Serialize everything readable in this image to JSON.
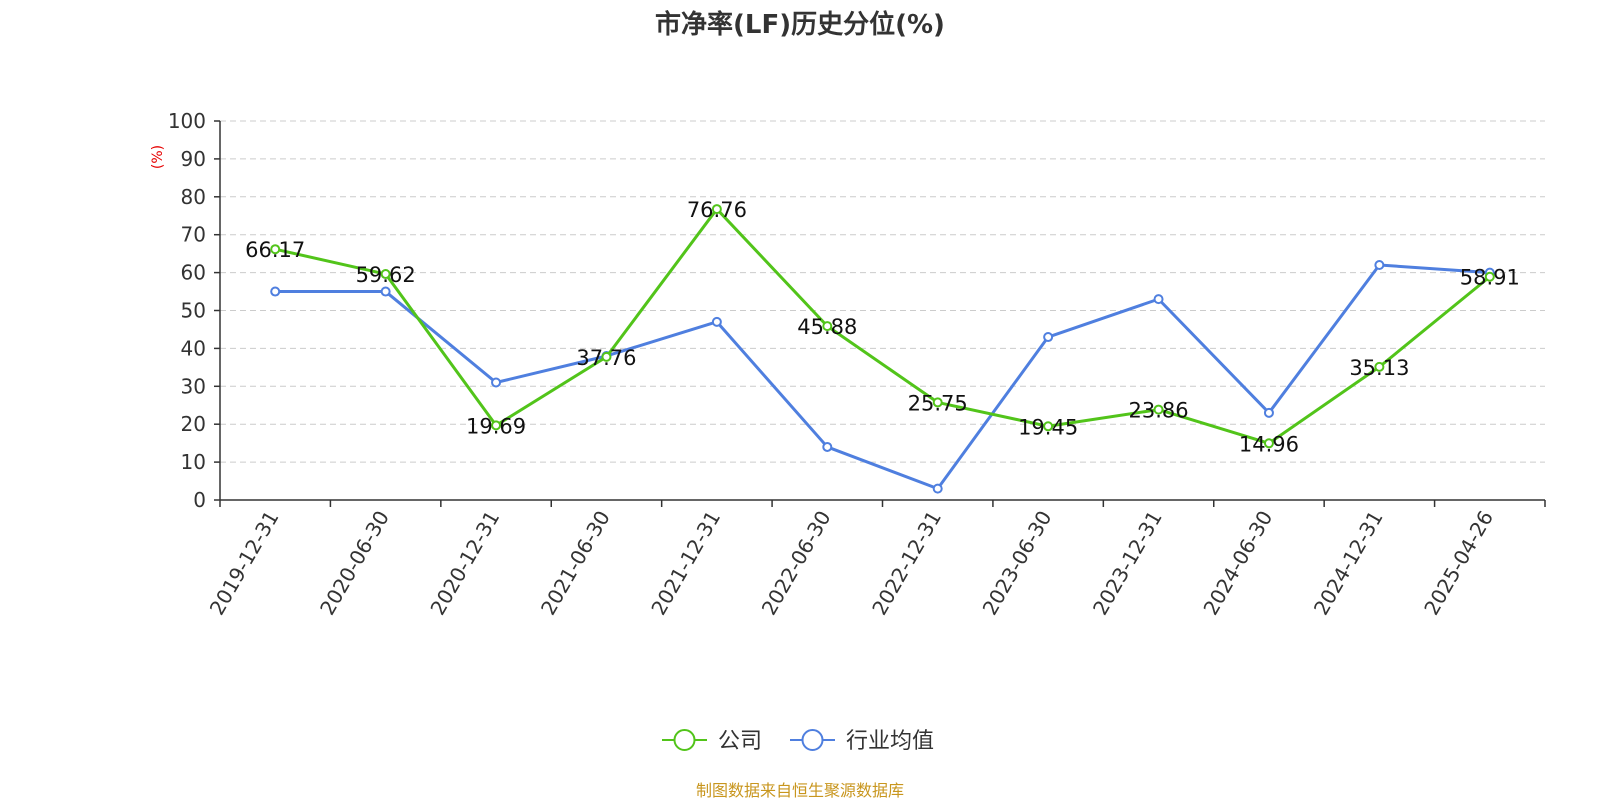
{
  "colors": {
    "company": "#52c41a",
    "industry": "#4f7fdf",
    "axis": "#333333",
    "grid": "#cccccc",
    "ylabel": "#e60000",
    "source": "#c8961e"
  },
  "chart_data": {
    "type": "line",
    "title": "市净率(LF)历史分位(%)",
    "ylabel": "(%)",
    "ylim": [
      0,
      100
    ],
    "yticks": [
      "0",
      "10",
      "20",
      "30",
      "40",
      "50",
      "60",
      "70",
      "80",
      "90",
      "100"
    ],
    "grid": true,
    "legend_position": "bottom-center",
    "categories": [
      "2019-12-31",
      "2020-06-30",
      "2020-12-31",
      "2021-06-30",
      "2021-12-31",
      "2022-06-30",
      "2022-12-31",
      "2023-06-30",
      "2023-12-31",
      "2024-06-30",
      "2024-12-31",
      "2025-04-26"
    ],
    "series": [
      {
        "name": "公司",
        "values": [
          66.17,
          59.62,
          19.69,
          37.76,
          76.76,
          45.88,
          25.75,
          19.45,
          23.86,
          14.96,
          35.13,
          58.91
        ],
        "labels": [
          "66.17",
          "59.62",
          "19.69",
          "37.76",
          "76.76",
          "45.88",
          "25.75",
          "19.45",
          "23.86",
          "14.96",
          "35.13",
          "58.91"
        ]
      },
      {
        "name": "行业均值",
        "values": [
          55,
          55,
          31,
          38,
          47,
          14,
          3,
          43,
          53,
          23,
          62,
          60
        ]
      }
    ]
  },
  "source": "制图数据来自恒生聚源数据库"
}
